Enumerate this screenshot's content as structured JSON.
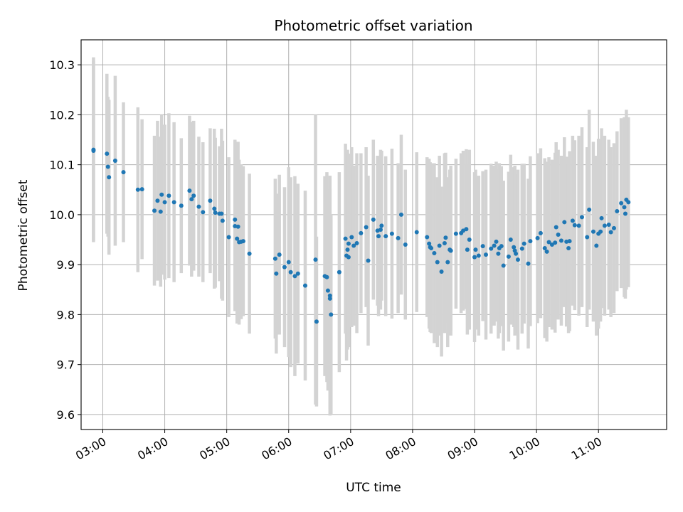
{
  "chart_data": {
    "type": "scatter",
    "title": "Photometric offset variation",
    "xlabel": "UTC time",
    "ylabel": "Photometric offset",
    "xlim": [
      "02:39",
      "12:06"
    ],
    "ylim": [
      9.57,
      10.35
    ],
    "x_ticks": [
      "03:00",
      "04:00",
      "05:00",
      "06:00",
      "07:00",
      "08:00",
      "09:00",
      "10:00",
      "11:00"
    ],
    "y_ticks": [
      "9.6",
      "9.7",
      "9.8",
      "9.9",
      "10.0",
      "10.1",
      "10.2",
      "10.3"
    ],
    "grid": true,
    "colors": {
      "marker": "#1f77b4",
      "errorbar": "#d3d3d3",
      "grid": "#b0b0b0"
    },
    "x": [
      "02:51",
      "02:51",
      "03:04",
      "03:05",
      "03:06",
      "03:12",
      "03:20",
      "03:34",
      "03:38",
      "03:50",
      "03:53",
      "03:56",
      "03:57",
      "04:00",
      "04:04",
      "04:09",
      "04:16",
      "04:24",
      "04:26",
      "04:28",
      "04:33",
      "04:37",
      "04:44",
      "04:48",
      "04:49",
      "04:53",
      "04:55",
      "04:56",
      "05:02",
      "05:08",
      "05:08",
      "05:10",
      "05:11",
      "05:12",
      "05:14",
      "05:16",
      "05:22",
      "05:47",
      "05:48",
      "05:51",
      "05:56",
      "06:00",
      "06:02",
      "06:06",
      "06:09",
      "06:16",
      "06:26",
      "06:27",
      "06:35",
      "06:37",
      "06:38",
      "06:40",
      "06:40",
      "06:41",
      "06:49",
      "06:55",
      "06:56",
      "06:57",
      "06:58",
      "06:58",
      "07:01",
      "07:03",
      "07:06",
      "07:10",
      "07:15",
      "07:17",
      "07:22",
      "07:26",
      "07:27",
      "07:29",
      "07:30",
      "07:34",
      "07:40",
      "07:46",
      "07:49",
      "07:53",
      "08:04",
      "08:14",
      "08:16",
      "08:17",
      "08:18",
      "08:21",
      "08:24",
      "08:26",
      "08:28",
      "08:31",
      "08:32",
      "08:34",
      "08:36",
      "08:37",
      "08:37",
      "08:42",
      "08:47",
      "08:49",
      "08:52",
      "08:53",
      "08:55",
      "09:00",
      "09:01",
      "09:04",
      "09:08",
      "09:11",
      "09:16",
      "09:19",
      "09:21",
      "09:23",
      "09:24",
      "09:26",
      "09:28",
      "09:33",
      "09:35",
      "09:38",
      "09:39",
      "09:40",
      "09:42",
      "09:46",
      "09:48",
      "09:52",
      "09:54",
      "10:01",
      "10:04",
      "10:08",
      "10:10",
      "10:12",
      "10:15",
      "10:18",
      "10:19",
      "10:21",
      "10:24",
      "10:27",
      "10:29",
      "10:31",
      "10:32",
      "10:35",
      "10:37",
      "10:41",
      "10:44",
      "10:49",
      "10:51",
      "10:55",
      "10:58",
      "11:00",
      "11:02",
      "11:03",
      "11:06",
      "11:10",
      "11:12",
      "11:15",
      "11:18",
      "11:22",
      "11:25",
      "11:26",
      "11:27",
      "11:29"
    ],
    "y": [
      10.13,
      10.128,
      10.122,
      10.096,
      10.075,
      10.108,
      10.085,
      10.05,
      10.051,
      10.008,
      10.028,
      10.006,
      10.04,
      10.025,
      10.038,
      10.025,
      10.018,
      10.048,
      10.031,
      10.038,
      10.016,
      10.005,
      10.028,
      10.012,
      10.004,
      10.002,
      10.002,
      9.988,
      9.955,
      9.99,
      9.977,
      9.952,
      9.976,
      9.945,
      9.946,
      9.947,
      9.922,
      9.912,
      9.882,
      9.92,
      9.895,
      9.905,
      9.885,
      9.877,
      9.882,
      9.858,
      9.91,
      9.786,
      9.877,
      9.875,
      9.848,
      9.838,
      9.832,
      9.8,
      9.885,
      9.952,
      9.918,
      9.93,
      9.942,
      9.915,
      9.955,
      9.938,
      9.943,
      9.963,
      9.975,
      9.908,
      9.99,
      9.968,
      9.957,
      9.97,
      9.978,
      9.957,
      9.962,
      9.953,
      10.0,
      9.94,
      9.965,
      9.955,
      9.942,
      9.935,
      9.933,
      9.923,
      9.905,
      9.938,
      9.886,
      9.943,
      9.954,
      9.905,
      9.93,
      9.928,
      9.928,
      9.962,
      9.963,
      9.968,
      9.971,
      9.93,
      9.95,
      9.915,
      9.93,
      9.918,
      9.937,
      9.92,
      9.932,
      9.938,
      9.946,
      9.922,
      9.933,
      9.937,
      9.898,
      9.916,
      9.95,
      9.935,
      9.928,
      9.922,
      9.91,
      9.932,
      9.942,
      9.902,
      9.947,
      9.953,
      9.963,
      9.933,
      9.926,
      9.945,
      9.94,
      9.944,
      9.975,
      9.96,
      9.948,
      9.985,
      9.946,
      9.933,
      9.947,
      9.988,
      9.979,
      9.978,
      9.995,
      9.955,
      10.01,
      9.966,
      9.938,
      9.962,
      9.966,
      9.993,
      9.978,
      9.98,
      9.965,
      9.973,
      10.007,
      10.023,
      10.015,
      10.002,
      10.03,
      10.025
    ],
    "err": [
      0.185,
      0.18,
      0.16,
      0.14,
      0.155,
      0.17,
      0.14,
      0.165,
      0.14,
      0.15,
      0.16,
      0.15,
      0.16,
      0.155,
      0.165,
      0.16,
      0.135,
      0.15,
      0.155,
      0.15,
      0.14,
      0.14,
      0.145,
      0.16,
      0.15,
      0.135,
      0.17,
      0.16,
      0.16,
      0.16,
      0.17,
      0.17,
      0.17,
      0.165,
      0.155,
      0.15,
      0.16,
      0.16,
      0.16,
      0.16,
      0.16,
      0.19,
      0.19,
      0.2,
      0.18,
      0.19,
      0.29,
      0.17,
      0.2,
      0.21,
      0.2,
      0.24,
      0.22,
      0.2,
      0.2,
      0.19,
      0.21,
      0.2,
      0.18,
      0.18,
      0.18,
      0.16,
      0.18,
      0.16,
      0.16,
      0.17,
      0.16,
      0.15,
      0.16,
      0.16,
      0.15,
      0.16,
      0.17,
      0.15,
      0.16,
      0.15,
      0.16,
      0.16,
      0.17,
      0.17,
      0.17,
      0.18,
      0.17,
      0.18,
      0.17,
      0.18,
      0.17,
      0.17,
      0.16,
      0.16,
      0.17,
      0.15,
      0.16,
      0.16,
      0.16,
      0.17,
      0.18,
      0.17,
      0.16,
      0.16,
      0.15,
      0.17,
      0.17,
      0.16,
      0.16,
      0.17,
      0.17,
      0.16,
      0.17,
      0.17,
      0.17,
      0.16,
      0.17,
      0.16,
      0.18,
      0.17,
      0.16,
      0.17,
      0.17,
      0.17,
      0.17,
      0.18,
      0.18,
      0.17,
      0.17,
      0.18,
      0.17,
      0.17,
      0.17,
      0.17,
      0.17,
      0.17,
      0.18,
      0.17,
      0.17,
      0.18,
      0.18,
      0.18,
      0.2,
      0.18,
      0.18,
      0.19,
      0.18,
      0.18,
      0.18,
      0.17,
      0.17,
      0.17,
      0.16,
      0.17,
      0.18,
      0.17,
      0.18,
      0.17
    ]
  }
}
